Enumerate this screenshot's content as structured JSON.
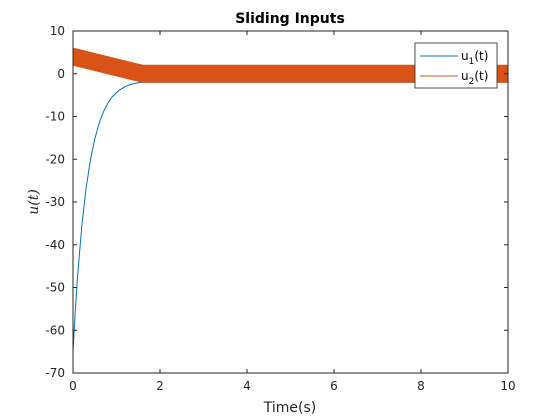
{
  "chart_data": {
    "type": "line",
    "title": "Sliding Inputs",
    "xlabel": "Time(s)",
    "ylabel": "u(t)",
    "xlim": [
      0,
      10
    ],
    "ylim": [
      -70,
      10
    ],
    "xticks": [
      0,
      2,
      4,
      6,
      8,
      10
    ],
    "yticks": [
      10,
      0,
      -10,
      -20,
      -30,
      -40,
      -50,
      -60,
      -70
    ],
    "grid": false,
    "legend_position": "top-right",
    "legend": [
      {
        "base": "u",
        "sub": "1",
        "suffix": "(t)"
      },
      {
        "base": "u",
        "sub": "2",
        "suffix": "(t)"
      }
    ],
    "series": [
      {
        "name": "u1(t)",
        "color": "#0072BD",
        "x": [
          0,
          0.05,
          0.1,
          0.2,
          0.3,
          0.4,
          0.5,
          0.6,
          0.7,
          0.8,
          0.9,
          1.0,
          1.1,
          1.2,
          1.3,
          1.4,
          1.5,
          1.6,
          1.8,
          2.0,
          10
        ],
        "y": [
          -65,
          -55.9,
          -48,
          -35.8,
          -26.8,
          -20.2,
          -15.3,
          -11.6,
          -8.9,
          -6.9,
          -5.4,
          -4.4,
          -3.6,
          -3.0,
          -2.6,
          -2.3,
          -2.1,
          -2.0,
          -2.0,
          -2.0,
          -2.0
        ]
      },
      {
        "name": "u2(t)",
        "color": "#D95319",
        "upper": {
          "x": [
            0,
            1.6,
            10
          ],
          "y": [
            6,
            2,
            2
          ]
        },
        "lower": {
          "x": [
            0,
            1.6,
            10
          ],
          "y": [
            2,
            -2,
            -2
          ]
        }
      }
    ]
  }
}
